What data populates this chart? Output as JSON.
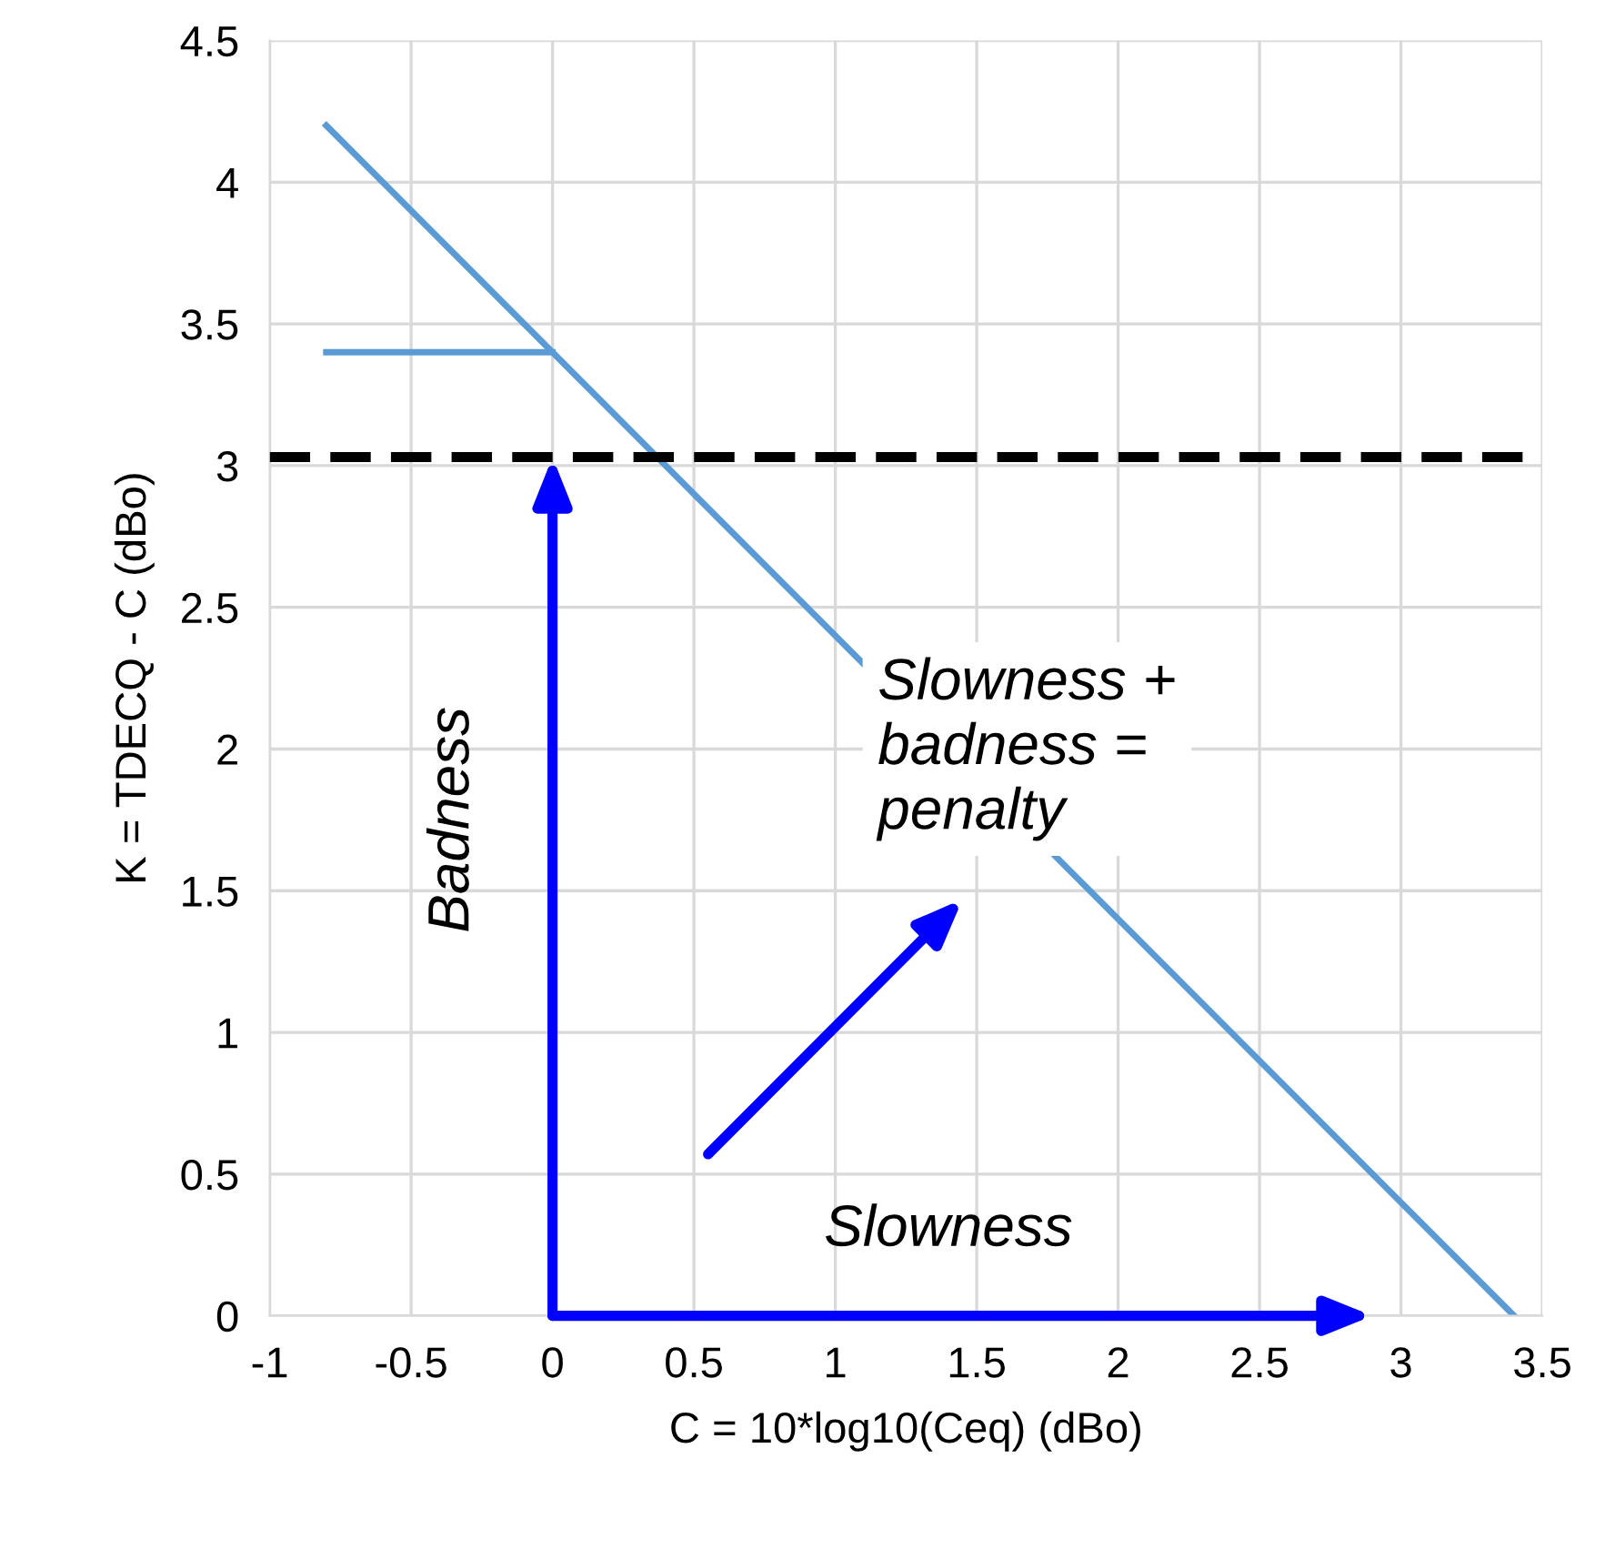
{
  "chart_data": {
    "type": "line",
    "xlabel": "C = 10*log10(Ceq) (dBo)",
    "ylabel": "K = TDECQ - C (dBo)",
    "series": [
      {
        "color": "#5b9bd5",
        "x": [
          -0.8,
          3.4
        ],
        "values": [
          4.2,
          0
        ]
      },
      {
        "color": "#5b9bd5",
        "x": [
          -0.8,
          0
        ],
        "values": [
          3.4,
          3.4
        ]
      }
    ],
    "xlim": [
      -1,
      3.5
    ],
    "xticks": [
      -1,
      -0.5,
      0,
      0.5,
      1,
      1.5,
      2,
      2.5,
      3,
      3.5
    ],
    "ylim": [
      0,
      4.5
    ],
    "yticks": [
      0,
      0.5,
      1,
      1.5,
      2,
      2.5,
      3,
      3.5,
      4,
      4.5
    ],
    "grid": true,
    "marker": "none",
    "line_style": "solid",
    "ref_lines": [
      {
        "axis": "y",
        "value": 3.03,
        "color": "#000000",
        "line_style": "dashed"
      }
    ],
    "annotations": [
      "Badness",
      "Slowness",
      "Slowness +\nbadness =\npenalty"
    ]
  }
}
